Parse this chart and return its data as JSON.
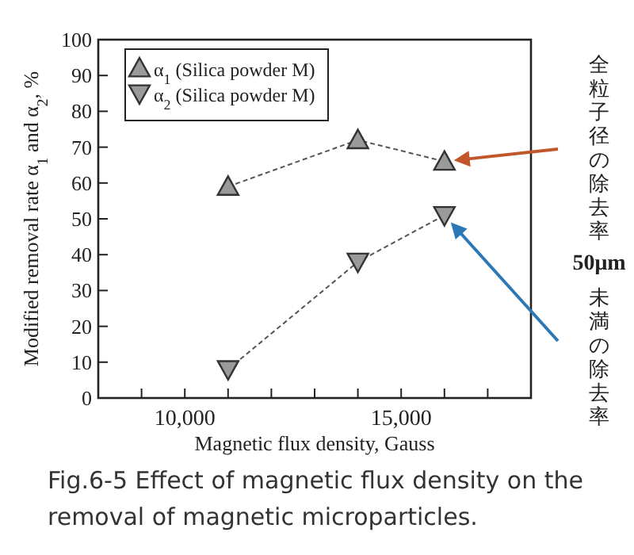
{
  "chart_data": {
    "type": "line",
    "xlabel": "Magnetic flux density, Gauss",
    "ylabel": "Modified removal rate α$_{1}$ and α$_{2}$, %",
    "x": [
      11000,
      14000,
      16000
    ],
    "series": [
      {
        "name": "α$_{1}$ (Silica powder M)",
        "color": "#9a9a9a",
        "marker": "triangle",
        "values": [
          59,
          72,
          66
        ]
      },
      {
        "name": "α$_{2}$ (Silica powder M)",
        "color": "#9a9a9a",
        "marker": "triangle_down",
        "values": [
          8,
          38,
          51
        ]
      }
    ],
    "xlim": [
      8000,
      18000
    ],
    "xticks": [
      {
        "value": 9000,
        "label": null
      },
      {
        "value": 10000,
        "label": "10,000"
      },
      {
        "value": 11000,
        "label": null
      },
      {
        "value": 12000,
        "label": null
      },
      {
        "value": 13000,
        "label": null
      },
      {
        "value": 14000,
        "label": null
      },
      {
        "value": 15000,
        "label": "15,000"
      },
      {
        "value": 16000,
        "label": null
      },
      {
        "value": 17000,
        "label": null
      }
    ],
    "ylim": [
      0,
      100
    ],
    "yticks": [
      0,
      10,
      20,
      30,
      40,
      50,
      60,
      70,
      80,
      90,
      100
    ],
    "line_style": "dashed",
    "grid": false,
    "legend": "top left",
    "annotations": [
      "全粒子径の除去率",
      "50μm未満の除去率",
      "Fig.6-5 Effect of magnetic flux density on the removal of magnetic microparticles."
    ]
  }
}
